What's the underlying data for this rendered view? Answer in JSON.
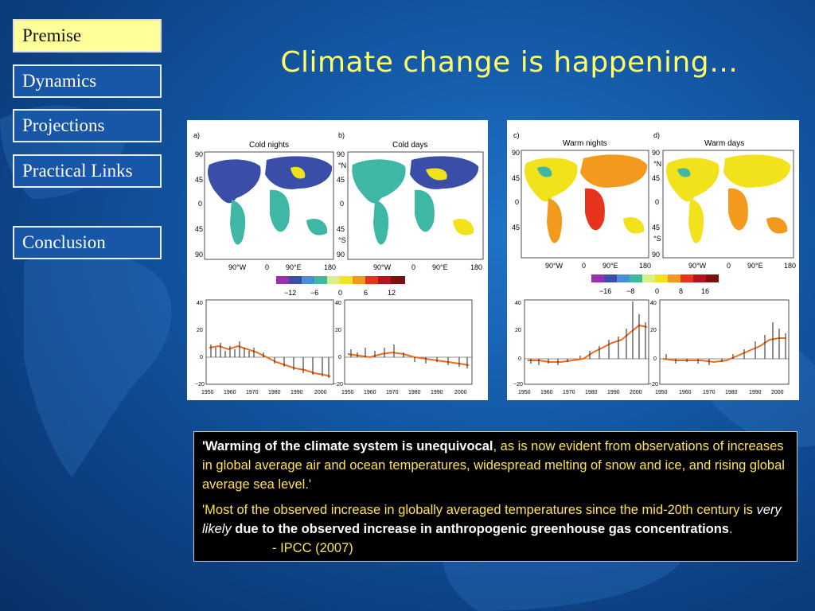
{
  "nav": {
    "items": [
      {
        "label": "Premise"
      },
      {
        "label": "Dynamics"
      },
      {
        "label": "Projections"
      },
      {
        "label": "Practical Links"
      },
      {
        "label": "Conclusion"
      }
    ]
  },
  "title": "Climate change is happening…",
  "figures": {
    "panel_a": {
      "letter": "a)",
      "title": "Cold nights"
    },
    "panel_b": {
      "letter": "b)",
      "title": "Cold days"
    },
    "panel_c": {
      "letter": "c)",
      "title": "Warm nights"
    },
    "panel_d": {
      "letter": "d)",
      "title": "Warm days"
    },
    "lat_ticks": [
      "90",
      "45",
      "0",
      "45",
      "90"
    ],
    "lat_ns": [
      "°N",
      "°S"
    ],
    "lon_ticks": [
      "90°W",
      "0",
      "90°E",
      "180"
    ],
    "scale_left": [
      "−12",
      "−6",
      "0",
      "6",
      "12"
    ],
    "scale_right": [
      "−16",
      "−8",
      "0",
      "8",
      "16"
    ],
    "ts_y_ticks": [
      "40",
      "20",
      "0",
      "−20"
    ],
    "ts_x_ticks": [
      "1950",
      "1960",
      "1970",
      "1980",
      "1990",
      "2000"
    ],
    "colors": {
      "blue_dark": "#3a4ea8",
      "teal": "#3fb7a5",
      "yellow": "#f2e21b",
      "orange": "#f39a1e",
      "red": "#e8331c",
      "trend": "#f26a1b"
    }
  },
  "quote": {
    "p1_bold": "'Warming of the climate system is unequivocal",
    "p1_rest": ", as is now evident from observations of increases in global average air and ocean temperatures, widespread melting of snow and ice, and rising global average sea level.'",
    "p2_start": "'Most of the observed increase in globally averaged temperatures since the mid-20th century is ",
    "p2_italic": "very likely",
    "p2_bold": " due to the observed increase in anthropogenic greenhouse gas concentrations",
    "p2_end": ".",
    "source": "- IPCC (2007)"
  }
}
